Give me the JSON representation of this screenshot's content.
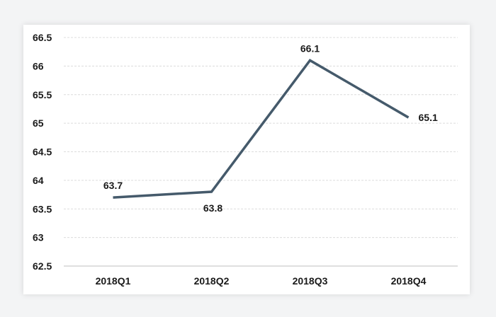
{
  "chart_data": {
    "type": "line",
    "title": "",
    "xlabel": "",
    "ylabel": "",
    "categories": [
      "2018Q1",
      "2018Q2",
      "2018Q3",
      "2018Q4"
    ],
    "series": [
      {
        "values": [
          63.7,
          63.8,
          66.1,
          65.1
        ],
        "data_labels": [
          "63.7",
          "63.8",
          "66.1",
          "65.1"
        ],
        "color": "#455a6b"
      }
    ],
    "y_ticks": [
      {
        "value": 62.5,
        "label": "62.5"
      },
      {
        "value": 63,
        "label": "63"
      },
      {
        "value": 63.5,
        "label": "63.5"
      },
      {
        "value": 64,
        "label": "64"
      },
      {
        "value": 64.5,
        "label": "64.5"
      },
      {
        "value": 65,
        "label": "65"
      },
      {
        "value": 65.5,
        "label": "65.5"
      },
      {
        "value": 66,
        "label": "66"
      },
      {
        "value": 66.5,
        "label": "66.5"
      }
    ],
    "ylim": [
      62.5,
      66.5
    ],
    "grid": true,
    "legend": "none"
  }
}
